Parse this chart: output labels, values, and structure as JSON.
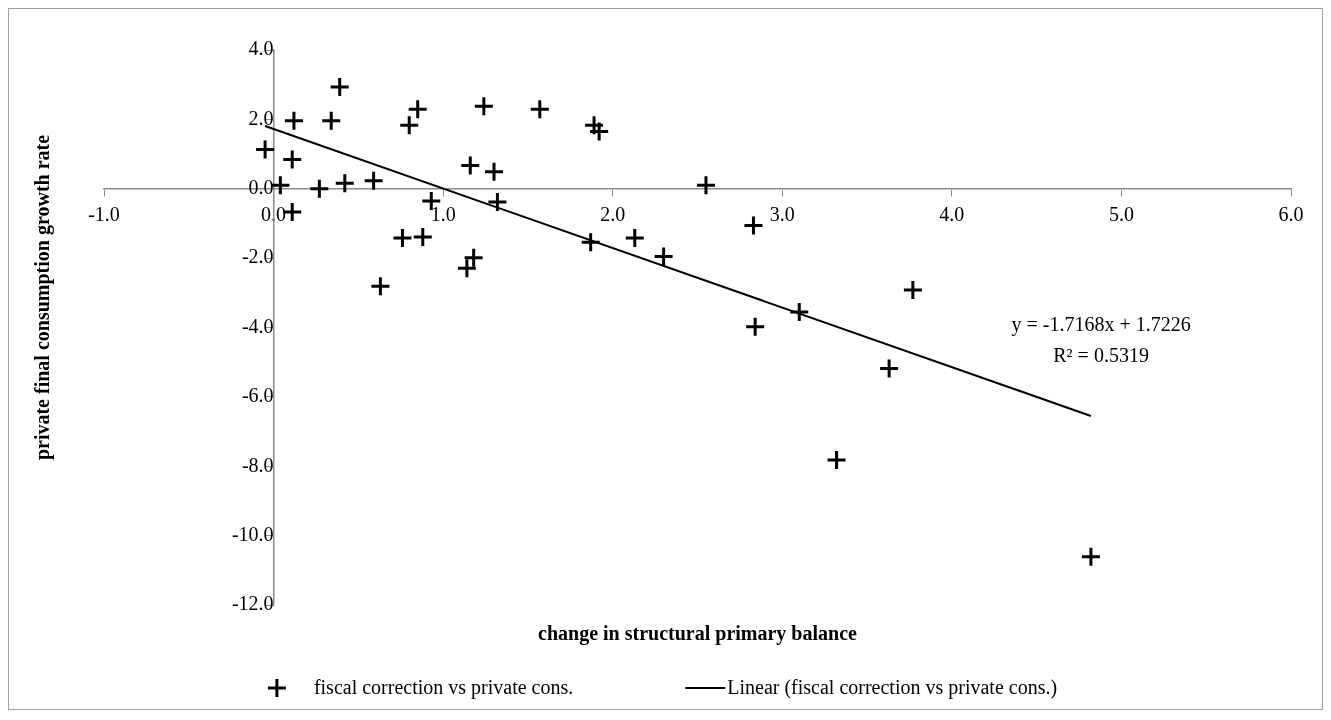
{
  "chart_data": {
    "type": "scatter",
    "xlabel": "change in structural primary balance",
    "ylabel": "private final consumption growth rate",
    "xlim": [
      -1,
      6
    ],
    "xticks": [
      {
        "value": -1,
        "label": "-1.0"
      },
      {
        "value": 0,
        "label": "0.0"
      },
      {
        "value": 1,
        "label": "1.0"
      },
      {
        "value": 2,
        "label": "2.0"
      },
      {
        "value": 3,
        "label": "3.0"
      },
      {
        "value": 4,
        "label": "4.0"
      },
      {
        "value": 5,
        "label": "5.0"
      },
      {
        "value": 6,
        "label": "6.0"
      }
    ],
    "ylim": [
      -12,
      4
    ],
    "yticks": [
      {
        "value": -12,
        "label": "-12.0"
      },
      {
        "value": -10,
        "label": "-10.0"
      },
      {
        "value": -8,
        "label": "-8.0"
      },
      {
        "value": -6,
        "label": "-6.0"
      },
      {
        "value": -4,
        "label": "-4.0"
      },
      {
        "value": -2,
        "label": "-2.0"
      },
      {
        "value": 0,
        "label": "0.0"
      },
      {
        "value": 2,
        "label": "2.0"
      },
      {
        "value": 4,
        "label": "4.0"
      }
    ],
    "grid": false,
    "legend": "bottom",
    "marker": "cross",
    "series": [
      {
        "name": "fiscal correction vs private cons.",
        "color": "#000000",
        "x": [
          0.39,
          0.12,
          0.34,
          -0.05,
          0.11,
          0.04,
          0.27,
          0.42,
          0.59,
          0.11,
          0.8,
          0.85,
          0.93,
          0.76,
          0.88,
          0.63,
          1.24,
          1.16,
          1.3,
          1.32,
          1.18,
          1.14,
          1.57,
          1.89,
          1.92,
          1.87,
          2.13,
          2.3,
          2.55,
          2.83,
          3.77,
          3.1,
          2.84,
          3.63,
          3.32,
          4.82
        ],
        "values": [
          2.93,
          1.96,
          1.96,
          1.13,
          0.84,
          0.1,
          0.0,
          0.16,
          0.23,
          -0.67,
          1.83,
          2.29,
          -0.35,
          -1.42,
          -1.39,
          -2.81,
          2.38,
          0.67,
          0.49,
          -0.38,
          -1.99,
          -2.29,
          2.29,
          1.83,
          1.65,
          -1.54,
          -1.42,
          -1.95,
          0.1,
          -1.06,
          -2.92,
          -3.55,
          -3.98,
          -5.18,
          -7.82,
          -10.61
        ]
      },
      {
        "name": "Linear (fiscal correction vs private cons.)",
        "type": "line",
        "color": "#000000",
        "line_style": "solid",
        "marker": "none",
        "x": [
          -0.05,
          4.82
        ],
        "values": [
          1.81,
          -6.55
        ]
      }
    ],
    "annotations": [
      "y = -1.7168x + 1.7226",
      "R² = 0.5319"
    ]
  }
}
